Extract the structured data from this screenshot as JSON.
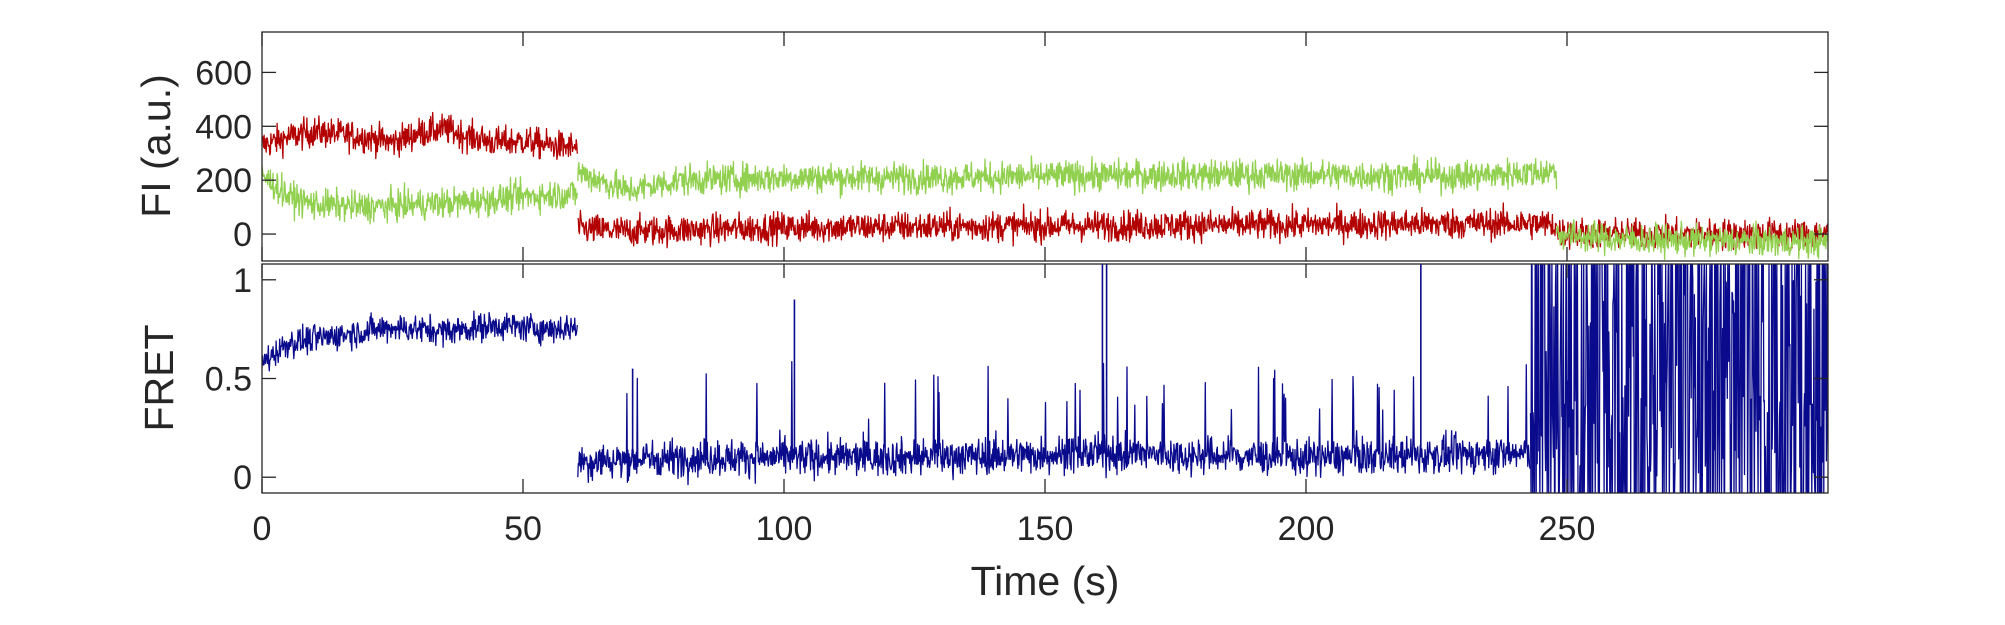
{
  "chart_data": [
    {
      "type": "line",
      "panel": "top",
      "ylabel": "FI (a.u.)",
      "xlim": [
        0,
        300
      ],
      "ylim": [
        -100,
        750
      ],
      "yticks": [
        0,
        200,
        400,
        600
      ],
      "ytick_labels": [
        "0",
        "200",
        "400",
        "600"
      ],
      "x_tick_labels_shown": false,
      "noise_amplitude": 55,
      "series": [
        {
          "color": "#b30000",
          "stroke_width": 1.3,
          "segments": [
            {
              "x": [
                0,
                5,
                10,
                15,
                20,
                25,
                30,
                35,
                40,
                45,
                50,
                55,
                60.5
              ],
              "y": [
                330,
                360,
                380,
                370,
                360,
                340,
                375,
                390,
                360,
                340,
                345,
                330,
                320
              ]
            },
            {
              "x": [
                60.5,
                70,
                80,
                100,
                150,
                200,
                240,
                248
              ],
              "y": [
                20,
                10,
                15,
                25,
                30,
                35,
                40,
                35
              ]
            },
            {
              "x": [
                248,
                260,
                280,
                300
              ],
              "y": [
                5,
                0,
                0,
                0
              ]
            }
          ]
        },
        {
          "color": "#92d050",
          "stroke_width": 1.3,
          "segments": [
            {
              "x": [
                0,
                5,
                10,
                20,
                30,
                40,
                50,
                60.5
              ],
              "y": [
                220,
                140,
                110,
                100,
                110,
                120,
                140,
                150
              ]
            },
            {
              "x": [
                60.5,
                70,
                80,
                100,
                130,
                150,
                175,
                200,
                230,
                245,
                248
              ],
              "y": [
                230,
                160,
                200,
                210,
                210,
                215,
                220,
                220,
                215,
                230,
                235
              ]
            },
            {
              "x": [
                248,
                260,
                280,
                300
              ],
              "y": [
                0,
                -20,
                -25,
                -30
              ]
            }
          ]
        }
      ]
    },
    {
      "type": "line",
      "panel": "bottom",
      "ylabel": "FRET",
      "xlabel": "Time (s)",
      "xlim": [
        0,
        300
      ],
      "ylim": [
        -0.08,
        1.08
      ],
      "xticks": [
        0,
        50,
        100,
        150,
        200,
        250
      ],
      "xtick_labels": [
        "0",
        "50",
        "100",
        "150",
        "200",
        "250"
      ],
      "yticks": [
        0,
        0.5,
        1
      ],
      "ytick_labels": [
        "0",
        "0.5",
        "1"
      ],
      "series": [
        {
          "color": "#0a0a8c",
          "stroke_width": 1.3,
          "segments": [
            {
              "x": [
                0,
                5,
                15,
                25,
                35,
                45,
                55,
                60.5
              ],
              "y": [
                0.58,
                0.68,
                0.72,
                0.76,
                0.74,
                0.77,
                0.75,
                0.76
              ]
            },
            {
              "x": [
                60.5,
                80,
                120,
                160,
                200,
                243
              ],
              "y": [
                0.08,
                0.1,
                0.1,
                0.12,
                0.1,
                0.12
              ]
            },
            {
              "x": [
                243,
                260,
                280,
                300
              ],
              "y": [
                0.5,
                0.5,
                0.5,
                0.5
              ]
            }
          ],
          "spikes": [
            {
              "x": 71,
              "y": 0.55
            },
            {
              "x": 102,
              "y": 0.9
            },
            {
              "x": 161,
              "y": 1.08
            },
            {
              "x": 161.8,
              "y": 1.08
            },
            {
              "x": 222,
              "y": 1.08
            }
          ]
        }
      ]
    }
  ]
}
